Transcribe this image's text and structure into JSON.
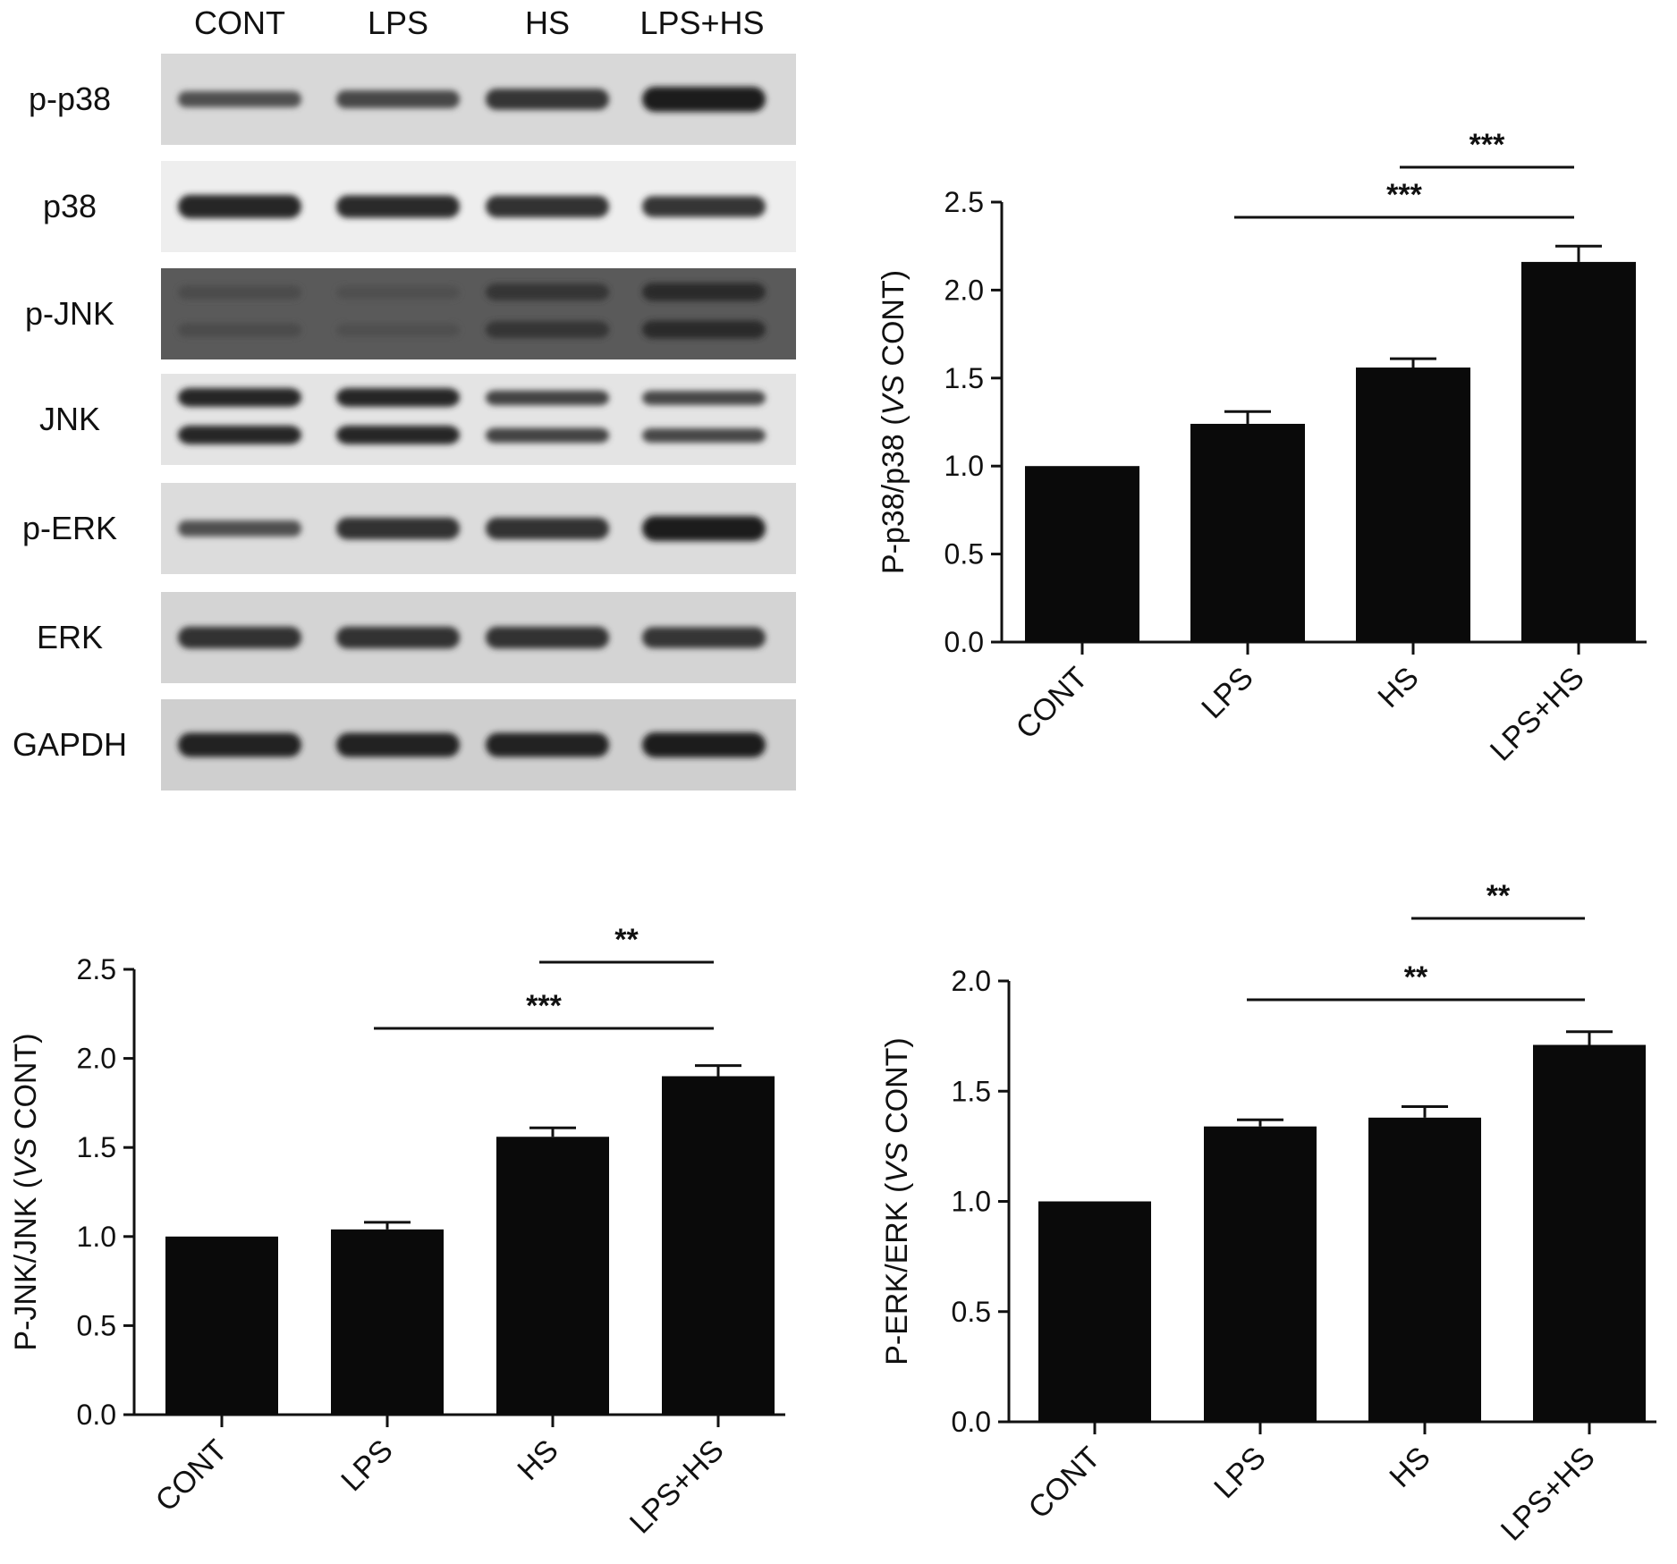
{
  "blot": {
    "lanes": [
      "CONT",
      "LPS",
      "HS",
      "LPS+HS"
    ],
    "rows": [
      {
        "label": "p-p38",
        "bands": [
          0.45,
          0.55,
          0.75,
          1.0
        ],
        "background": "#d8d8d8"
      },
      {
        "label": "p38",
        "bands": [
          0.9,
          0.85,
          0.8,
          0.75
        ],
        "background": "#eeeeee"
      },
      {
        "label": "p-JNK",
        "bands": [
          0.5,
          0.45,
          0.75,
          0.85
        ],
        "background": "#5a5a5a",
        "double": true
      },
      {
        "label": "JNK",
        "bands": [
          0.9,
          0.9,
          0.6,
          0.55
        ],
        "background": "#e4e4e4",
        "double": true
      },
      {
        "label": "p-ERK",
        "bands": [
          0.45,
          0.8,
          0.8,
          1.0
        ],
        "background": "#dcdcdc"
      },
      {
        "label": "ERK",
        "bands": [
          0.8,
          0.8,
          0.8,
          0.75
        ],
        "background": "#d4d4d4"
      },
      {
        "label": "GAPDH",
        "bands": [
          0.95,
          0.95,
          0.95,
          1.0
        ],
        "background": "#cfcfcf"
      }
    ]
  },
  "chart_data": [
    {
      "type": "bar",
      "categories": [
        "CONT",
        "LPS",
        "HS",
        "LPS+HS"
      ],
      "values": [
        1.0,
        1.24,
        1.56,
        2.16
      ],
      "errors": [
        0,
        0.07,
        0.05,
        0.09
      ],
      "ylabel_prefix": "P-p38/p38 (",
      "ylabel_italic": "VS",
      "ylabel_suffix": " CONT)",
      "ylim": [
        0,
        2.5
      ],
      "yticks": [
        "0.0",
        "0.5",
        "1.0",
        "1.5",
        "2.0",
        "2.5"
      ],
      "bar_color": "#0a0a0a",
      "significance": [
        {
          "from": "LPS",
          "to": "LPS+HS",
          "label": "***"
        },
        {
          "from": "HS",
          "to": "LPS+HS",
          "label": "***"
        }
      ]
    },
    {
      "type": "bar",
      "categories": [
        "CONT",
        "LPS",
        "HS",
        "LPS+HS"
      ],
      "values": [
        1.0,
        1.04,
        1.56,
        1.9
      ],
      "errors": [
        0,
        0.04,
        0.05,
        0.06
      ],
      "ylabel_prefix": "P-JNK/JNK (",
      "ylabel_italic": "VS",
      "ylabel_suffix": " CONT)",
      "ylim": [
        0,
        2.5
      ],
      "yticks": [
        "0.0",
        "0.5",
        "1.0",
        "1.5",
        "2.0",
        "2.5"
      ],
      "bar_color": "#0a0a0a",
      "significance": [
        {
          "from": "LPS",
          "to": "LPS+HS",
          "label": "***"
        },
        {
          "from": "HS",
          "to": "LPS+HS",
          "label": "**"
        }
      ]
    },
    {
      "type": "bar",
      "categories": [
        "CONT",
        "LPS",
        "HS",
        "LPS+HS"
      ],
      "values": [
        1.0,
        1.34,
        1.38,
        1.71
      ],
      "errors": [
        0,
        0.03,
        0.05,
        0.06
      ],
      "ylabel_prefix": "P-ERK/ERK (",
      "ylabel_italic": "VS",
      "ylabel_suffix": " CONT)",
      "ylim": [
        0,
        2.0
      ],
      "yticks": [
        "0.0",
        "0.5",
        "1.0",
        "1.5",
        "2.0"
      ],
      "bar_color": "#0a0a0a",
      "significance": [
        {
          "from": "LPS",
          "to": "LPS+HS",
          "label": "**"
        },
        {
          "from": "HS",
          "to": "LPS+HS",
          "label": "**"
        }
      ]
    }
  ]
}
